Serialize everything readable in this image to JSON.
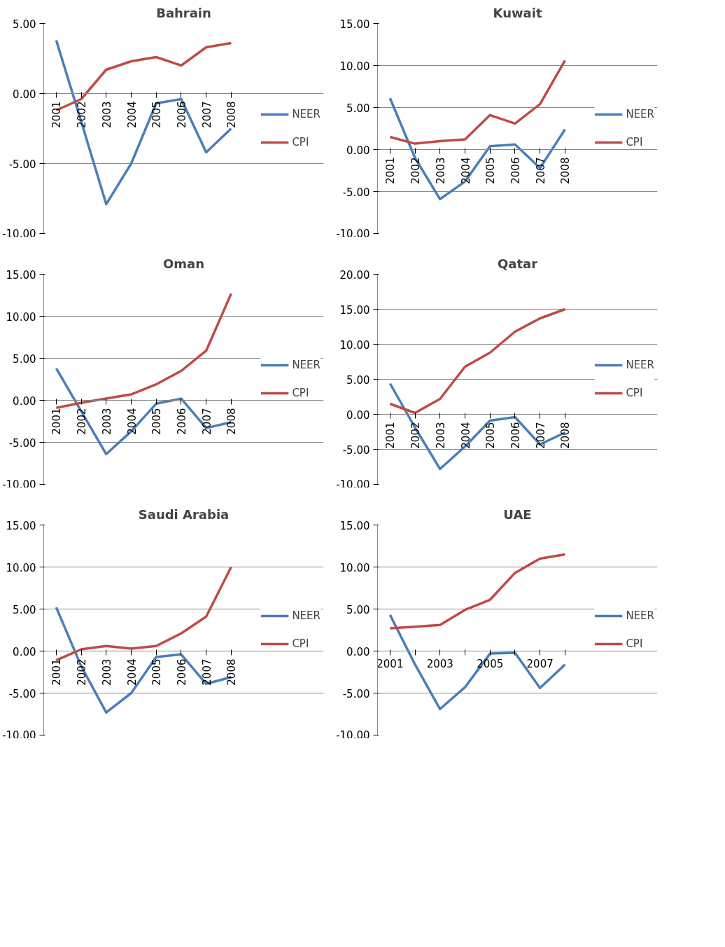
{
  "chart_data": [
    {
      "type": "line",
      "title": "Bahrain",
      "categories": [
        "2001",
        "2002",
        "2003",
        "2004",
        "2005",
        "2006",
        "2007",
        "2008"
      ],
      "ylim": [
        -10,
        5
      ],
      "yticks": [
        {
          "value": -10,
          "label": "-10.00"
        },
        {
          "value": -5,
          "label": "-5.00"
        },
        {
          "value": 0,
          "label": "0.00"
        },
        {
          "value": 5,
          "label": "5.00"
        }
      ],
      "grid": "y",
      "legend": "right",
      "series": [
        {
          "name": "NEER",
          "color": "#4a7ebb",
          "values": [
            3.8,
            -2.0,
            -7.9,
            -5.0,
            -0.7,
            -0.4,
            -4.2,
            -2.5
          ]
        },
        {
          "name": "CPI",
          "color": "#be4b48",
          "values": [
            -1.2,
            -0.4,
            1.7,
            2.3,
            2.6,
            2.0,
            3.3,
            3.6
          ]
        }
      ]
    },
    {
      "type": "line",
      "title": "Kuwait",
      "categories": [
        "2001",
        "2002",
        "2003",
        "2004",
        "2005",
        "2006",
        "2007",
        "2008"
      ],
      "ylim": [
        -10,
        15
      ],
      "yticks": [
        {
          "value": -10,
          "label": "-10.00"
        },
        {
          "value": -5,
          "label": "-5.00"
        },
        {
          "value": 0,
          "label": "0.00"
        },
        {
          "value": 5,
          "label": "5.00"
        },
        {
          "value": 10,
          "label": "10.00"
        },
        {
          "value": 15,
          "label": "15.00"
        }
      ],
      "grid": "y",
      "legend": "right",
      "series": [
        {
          "name": "NEER",
          "color": "#4a7ebb",
          "values": [
            6.1,
            -1.0,
            -5.9,
            -3.8,
            0.4,
            0.6,
            -2.2,
            2.4
          ]
        },
        {
          "name": "CPI",
          "color": "#be4b48",
          "values": [
            1.5,
            0.7,
            1.0,
            1.2,
            4.1,
            3.1,
            5.4,
            10.6
          ]
        }
      ]
    },
    {
      "type": "line",
      "title": "Oman",
      "categories": [
        "2001",
        "2002",
        "2003",
        "2004",
        "2005",
        "2006",
        "2007",
        "2008"
      ],
      "ylim": [
        -10,
        15
      ],
      "yticks": [
        {
          "value": -10,
          "label": "-10.00"
        },
        {
          "value": -5,
          "label": "-5.00"
        },
        {
          "value": 0,
          "label": "0.00"
        },
        {
          "value": 5,
          "label": "5.00"
        },
        {
          "value": 10,
          "label": "10.00"
        },
        {
          "value": 15,
          "label": "15.00"
        }
      ],
      "grid": "y",
      "legend": "right",
      "series": [
        {
          "name": "NEER",
          "color": "#4a7ebb",
          "values": [
            3.8,
            -1.3,
            -6.4,
            -3.7,
            -0.4,
            0.2,
            -3.3,
            -2.6
          ]
        },
        {
          "name": "CPI",
          "color": "#be4b48",
          "values": [
            -0.9,
            -0.3,
            0.2,
            0.7,
            1.9,
            3.5,
            5.9,
            12.7
          ]
        }
      ]
    },
    {
      "type": "line",
      "title": "Qatar",
      "categories": [
        "2001",
        "2002",
        "2003",
        "2004",
        "2005",
        "2006",
        "2007",
        "2008"
      ],
      "ylim": [
        -10,
        20
      ],
      "yticks": [
        {
          "value": -10,
          "label": "-10.00"
        },
        {
          "value": -5,
          "label": "-5.00"
        },
        {
          "value": 0,
          "label": "0.00"
        },
        {
          "value": 5,
          "label": "5.00"
        },
        {
          "value": 10,
          "label": "10.00"
        },
        {
          "value": 15,
          "label": "15.00"
        },
        {
          "value": 20,
          "label": "20.00"
        }
      ],
      "grid": "y",
      "legend": "right",
      "series": [
        {
          "name": "NEER",
          "color": "#4a7ebb",
          "values": [
            4.4,
            -1.9,
            -7.8,
            -4.6,
            -0.9,
            -0.4,
            -4.3,
            -2.6
          ]
        },
        {
          "name": "CPI",
          "color": "#be4b48",
          "values": [
            1.5,
            0.2,
            2.2,
            6.8,
            8.8,
            11.8,
            13.7,
            15.0
          ]
        }
      ]
    },
    {
      "type": "line",
      "title": "Saudi Arabia",
      "categories": [
        "2001",
        "2002",
        "2003",
        "2004",
        "2005",
        "2006",
        "2007",
        "2008"
      ],
      "ylim": [
        -10,
        15
      ],
      "yticks": [
        {
          "value": -10,
          "label": "-10.00"
        },
        {
          "value": -5,
          "label": "-5.00"
        },
        {
          "value": 0,
          "label": "0.00"
        },
        {
          "value": 5,
          "label": "5.00"
        },
        {
          "value": 10,
          "label": "10.00"
        },
        {
          "value": 15,
          "label": "15.00"
        }
      ],
      "grid": "y",
      "legend": "right",
      "series": [
        {
          "name": "NEER",
          "color": "#4a7ebb",
          "values": [
            5.2,
            -1.8,
            -7.3,
            -5.0,
            -0.7,
            -0.4,
            -3.9,
            -3.1
          ]
        },
        {
          "name": "CPI",
          "color": "#be4b48",
          "values": [
            -1.1,
            0.2,
            0.6,
            0.3,
            0.6,
            2.1,
            4.1,
            10.0
          ]
        }
      ]
    },
    {
      "type": "line",
      "title": "UAE",
      "categories": [
        "2001",
        null,
        "2003",
        null,
        "2005",
        null,
        "2007",
        null
      ],
      "ylim": [
        -10,
        15
      ],
      "yticks": [
        {
          "value": -10,
          "label": "-10.00"
        },
        {
          "value": -5,
          "label": "-5.00"
        },
        {
          "value": 0,
          "label": "0.00"
        },
        {
          "value": 5,
          "label": "5.00"
        },
        {
          "value": 10,
          "label": "10.00"
        },
        {
          "value": 15,
          "label": "15.00"
        }
      ],
      "grid": "y",
      "legend": "right",
      "series": [
        {
          "name": "NEER",
          "color": "#4a7ebb",
          "values": [
            4.3,
            -1.6,
            -6.9,
            -4.3,
            -0.3,
            -0.2,
            -4.4,
            -1.6
          ]
        },
        {
          "name": "CPI",
          "color": "#be4b48",
          "values": [
            2.7,
            2.9,
            3.1,
            4.9,
            6.1,
            9.3,
            11.0,
            11.5
          ]
        }
      ]
    }
  ]
}
